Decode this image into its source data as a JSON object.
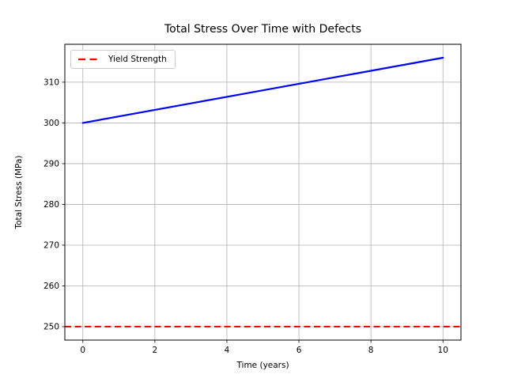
{
  "chart_data": {
    "type": "line",
    "title": "Total Stress Over Time with Defects",
    "xlabel": "Time (years)",
    "ylabel": "Total Stress (MPa)",
    "xlim": [
      -0.5,
      10.5
    ],
    "ylim": [
      246.7,
      319.3
    ],
    "xticks": [
      0,
      2,
      4,
      6,
      8,
      10
    ],
    "yticks": [
      250,
      260,
      270,
      280,
      290,
      300,
      310
    ],
    "grid": true,
    "grid_color": "#b0b0b0",
    "series": [
      {
        "name": "Total Stress",
        "kind": "line",
        "color": "#0000ff",
        "linestyle": "solid",
        "linewidth": 2.2,
        "x": [
          0,
          1,
          2,
          3,
          4,
          5,
          6,
          7,
          8,
          9,
          10
        ],
        "y": [
          300,
          301.6,
          303.2,
          304.8,
          306.4,
          308,
          309.6,
          311.2,
          312.8,
          314.4,
          316
        ]
      },
      {
        "name": "Yield Strength",
        "kind": "hline",
        "color": "#ff0000",
        "linestyle": "dashed",
        "linewidth": 2,
        "y": 250
      }
    ],
    "legend": {
      "position": "upper left",
      "entries": [
        {
          "label": "Yield Strength",
          "color": "#ff0000",
          "linestyle": "dashed"
        }
      ]
    }
  }
}
